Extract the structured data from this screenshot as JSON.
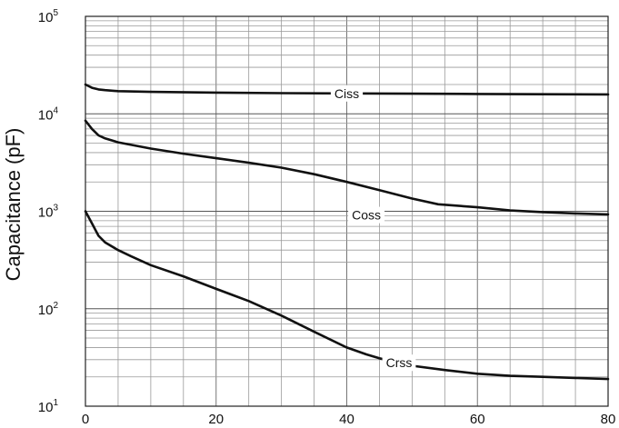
{
  "chart_data": {
    "type": "line",
    "title": "",
    "xlabel": "",
    "ylabel": "Capacitance (pF)",
    "xlim": [
      0,
      80
    ],
    "ylim": [
      10,
      100000
    ],
    "y_scale": "log",
    "grid": true,
    "x_ticks": [
      0,
      20,
      40,
      60,
      80
    ],
    "y_ticks": [
      {
        "base": "10",
        "exp": "1"
      },
      {
        "base": "10",
        "exp": "2"
      },
      {
        "base": "10",
        "exp": "3"
      },
      {
        "base": "10",
        "exp": "4"
      },
      {
        "base": "10",
        "exp": "5"
      }
    ],
    "series": [
      {
        "name": "Ciss",
        "label_x": 40,
        "x": [
          0,
          1,
          2,
          3,
          5,
          10,
          20,
          30,
          40,
          50,
          60,
          70,
          80
        ],
        "y": [
          20000,
          18500,
          17800,
          17500,
          17100,
          16800,
          16500,
          16300,
          16200,
          16100,
          16000,
          15900,
          15800
        ]
      },
      {
        "name": "Coss",
        "label_x": 43,
        "x": [
          0,
          1,
          2,
          3,
          5,
          10,
          15,
          20,
          25,
          30,
          35,
          40,
          45,
          50,
          54,
          60,
          65,
          70,
          75,
          80
        ],
        "y": [
          8500,
          7000,
          6000,
          5600,
          5100,
          4400,
          3900,
          3500,
          3150,
          2800,
          2400,
          2000,
          1650,
          1350,
          1180,
          1100,
          1020,
          980,
          950,
          930
        ]
      },
      {
        "name": "Crss",
        "label_x": 48,
        "x": [
          0,
          1,
          2,
          3,
          5,
          7,
          10,
          15,
          20,
          25,
          30,
          35,
          40,
          43,
          45,
          50,
          55,
          60,
          65,
          70,
          75,
          80
        ],
        "y": [
          1000,
          750,
          560,
          480,
          400,
          345,
          280,
          215,
          160,
          120,
          85,
          58,
          40,
          34,
          31,
          26,
          23.5,
          21.5,
          20.5,
          20,
          19.5,
          19
        ]
      }
    ]
  }
}
